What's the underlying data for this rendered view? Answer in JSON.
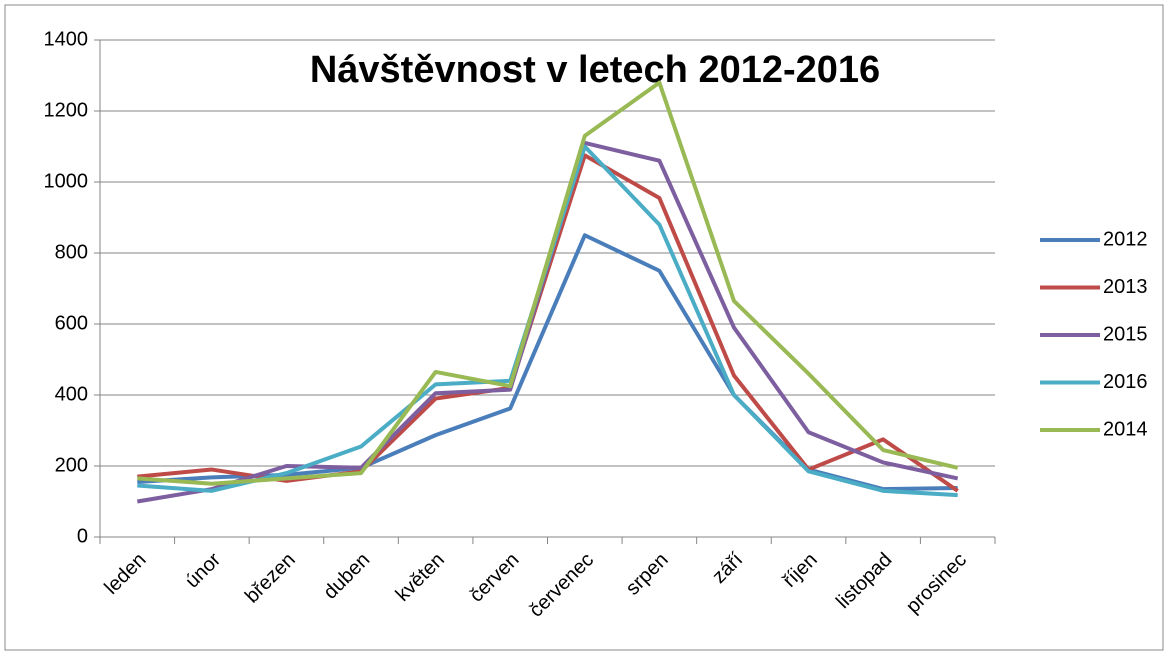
{
  "chart_data": {
    "type": "line",
    "title": "Návštěvnost v letech 2012-2016",
    "categories": [
      "leden",
      "únor",
      "březen",
      "duben",
      "květen",
      "červen",
      "červenec",
      "srpen",
      "září",
      "říjen",
      "listopad",
      "prosinec"
    ],
    "series": [
      {
        "name": "2012",
        "color": "#4a7ebb",
        "values": [
          155,
          168,
          175,
          195,
          287,
          362,
          850,
          750,
          400,
          190,
          135,
          138
        ]
      },
      {
        "name": "2013",
        "color": "#be4b48",
        "values": [
          170,
          190,
          158,
          185,
          390,
          420,
          1075,
          955,
          455,
          190,
          275,
          130
        ]
      },
      {
        "name": "2015",
        "color": "#7d5fa0",
        "values": [
          100,
          135,
          200,
          195,
          405,
          415,
          1110,
          1060,
          590,
          295,
          210,
          165
        ]
      },
      {
        "name": "2016",
        "color": "#4bacc6",
        "values": [
          145,
          130,
          180,
          255,
          430,
          440,
          1100,
          880,
          400,
          185,
          130,
          118
        ]
      },
      {
        "name": "2014",
        "color": "#98b954",
        "values": [
          165,
          150,
          165,
          180,
          465,
          425,
          1130,
          1280,
          665,
          460,
          245,
          195
        ]
      }
    ],
    "ylim": [
      0,
      1400
    ],
    "yticks": [
      0,
      200,
      400,
      600,
      800,
      1000,
      1200,
      1400
    ],
    "grid": true,
    "legend": "right"
  }
}
